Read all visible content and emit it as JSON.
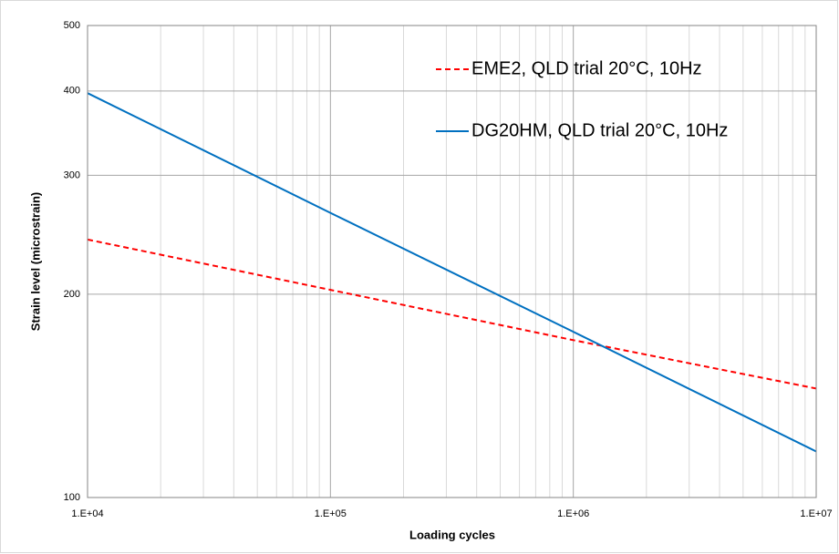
{
  "chart_data": {
    "type": "line",
    "x_label": "Loading cycles",
    "y_label": "Strain level (microstrain)",
    "x": [
      10000,
      100000,
      1000000,
      10000000
    ],
    "series": [
      {
        "name": "EME2, QLD trial 20°C, 10Hz",
        "color": "#ff0000",
        "dash": "dashed",
        "values": [
          241,
          203,
          171,
          145
        ]
      },
      {
        "name": "DG20HM, QLD trial 20°C, 10Hz",
        "color": "#0070c0",
        "dash": "solid",
        "values": [
          397,
          264,
          176,
          117
        ]
      }
    ],
    "x_log": true,
    "y_log": true,
    "xlim": [
      10000,
      10000000
    ],
    "xticks": [
      {
        "value": 10000,
        "label": "1.E+04"
      },
      {
        "value": 100000,
        "label": "1.E+05"
      },
      {
        "value": 1000000,
        "label": "1.E+06"
      },
      {
        "value": 10000000,
        "label": "1.E+07"
      }
    ],
    "ylim": [
      100,
      500
    ],
    "yticks": [
      100,
      200,
      300,
      400,
      500
    ],
    "grid": true,
    "x_minor_grid": true,
    "legend": "upper right"
  }
}
